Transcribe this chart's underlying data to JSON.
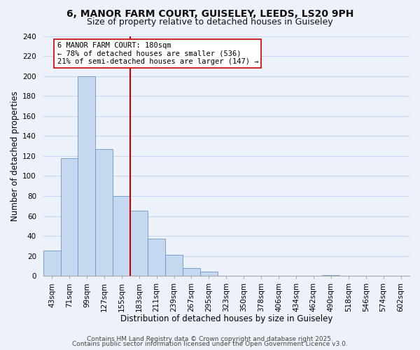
{
  "title_line1": "6, MANOR FARM COURT, GUISELEY, LEEDS, LS20 9PH",
  "title_line2": "Size of property relative to detached houses in Guiseley",
  "bar_labels": [
    "43sqm",
    "71sqm",
    "99sqm",
    "127sqm",
    "155sqm",
    "183sqm",
    "211sqm",
    "239sqm",
    "267sqm",
    "295sqm",
    "323sqm",
    "350sqm",
    "378sqm",
    "406sqm",
    "434sqm",
    "462sqm",
    "490sqm",
    "518sqm",
    "546sqm",
    "574sqm",
    "602sqm"
  ],
  "bar_values": [
    25,
    118,
    200,
    127,
    80,
    65,
    37,
    21,
    8,
    4,
    0,
    0,
    0,
    0,
    0,
    0,
    1,
    0,
    0,
    0,
    0
  ],
  "bar_color": "#c5d8f0",
  "bar_edge_color": "#6898c8",
  "vline_color": "#cc0000",
  "annotation_line1": "6 MANOR FARM COURT: 180sqm",
  "annotation_line2": "← 78% of detached houses are smaller (536)",
  "annotation_line3": "21% of semi-detached houses are larger (147) →",
  "annotation_box_color": "#ffffff",
  "annotation_box_edge": "#cc0000",
  "xlabel": "Distribution of detached houses by size in Guiseley",
  "ylabel": "Number of detached properties",
  "ylim": [
    0,
    240
  ],
  "yticks": [
    0,
    20,
    40,
    60,
    80,
    100,
    120,
    140,
    160,
    180,
    200,
    220,
    240
  ],
  "footer_line1": "Contains HM Land Registry data © Crown copyright and database right 2025.",
  "footer_line2": "Contains public sector information licensed under the Open Government Licence v3.0.",
  "bg_color": "#edf2fa",
  "plot_bg_color": "#edf2fa",
  "grid_color": "#c8d8ee",
  "title_fontsize": 10,
  "subtitle_fontsize": 9,
  "axis_label_fontsize": 8.5,
  "tick_fontsize": 7.5,
  "annotation_fontsize": 7.5,
  "footer_fontsize": 6.5
}
